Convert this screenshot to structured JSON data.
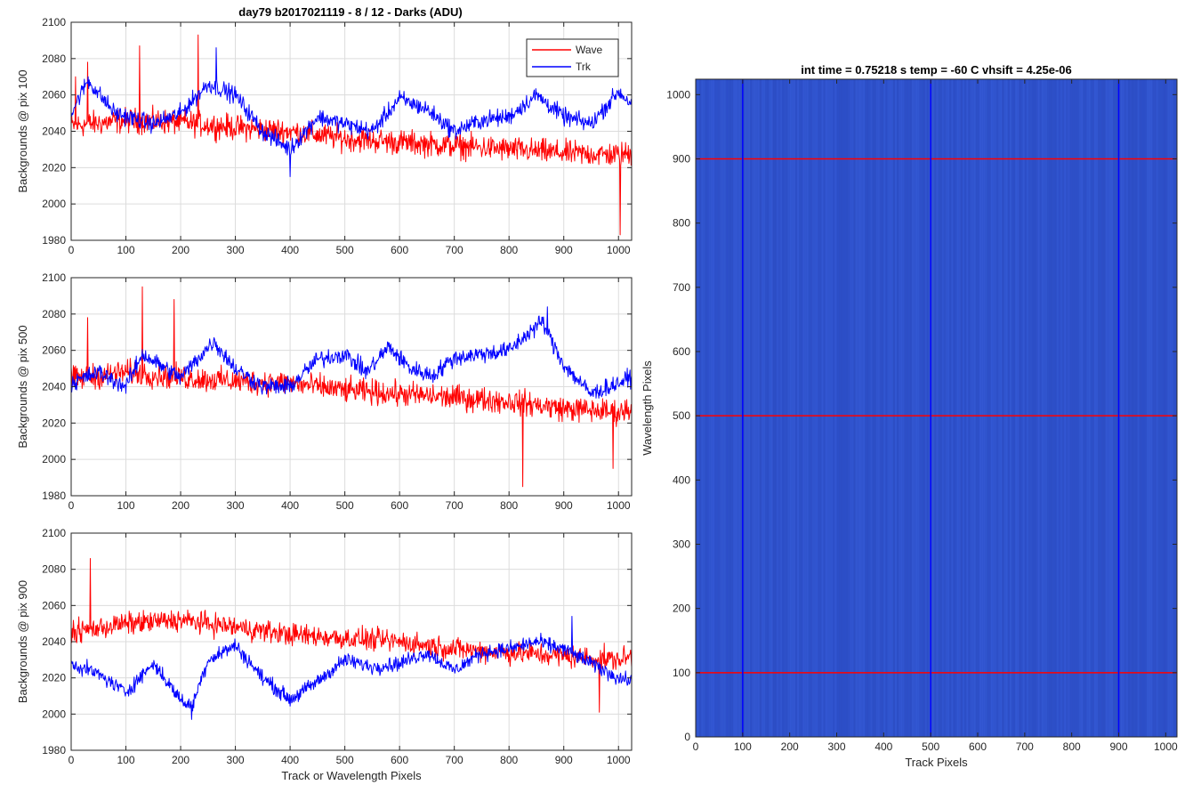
{
  "figure_title": "day79 b2017021119 - 8 / 12 - Darks (ADU)",
  "chart_data": [
    {
      "type": "line",
      "ylabel": "Backgrounds @ pix 100",
      "xlabel": "",
      "xlim": [
        0,
        1024
      ],
      "ylim": [
        1980,
        2100
      ],
      "xticks": [
        0,
        100,
        200,
        300,
        400,
        500,
        600,
        700,
        800,
        900,
        1000
      ],
      "yticks": [
        1980,
        2000,
        2020,
        2040,
        2060,
        2080,
        2100
      ],
      "grid": true,
      "legend": {
        "placement": "top-right",
        "entries": [
          "Wave",
          "Trk"
        ]
      },
      "series": [
        {
          "name": "Wave",
          "color": "#ff0000",
          "x": [
            0,
            100,
            200,
            300,
            400,
            500,
            600,
            700,
            800,
            900,
            1000,
            1024
          ],
          "values": [
            2043,
            2046,
            2045,
            2042,
            2040,
            2036,
            2034,
            2032,
            2030,
            2028,
            2027,
            2028
          ],
          "spread": 10,
          "spikes": [
            [
              8,
              2070
            ],
            [
              30,
              2078
            ],
            [
              125,
              2087
            ],
            [
              232,
              2093
            ],
            [
              1003,
              1983
            ]
          ]
        },
        {
          "name": "Trk",
          "color": "#0000ff",
          "x": [
            0,
            30,
            80,
            150,
            200,
            250,
            300,
            350,
            400,
            450,
            500,
            550,
            600,
            650,
            700,
            750,
            800,
            850,
            900,
            950,
            1000,
            1024
          ],
          "values": [
            2050,
            2068,
            2050,
            2044,
            2050,
            2066,
            2060,
            2040,
            2030,
            2048,
            2044,
            2040,
            2058,
            2052,
            2040,
            2046,
            2048,
            2060,
            2048,
            2044,
            2062,
            2055
          ],
          "spread": 7,
          "spikes": [
            [
              265,
              2086
            ],
            [
              400,
              2015
            ]
          ]
        }
      ]
    },
    {
      "type": "line",
      "ylabel": "Backgrounds @ pix 500",
      "xlabel": "",
      "xlim": [
        0,
        1024
      ],
      "ylim": [
        1980,
        2100
      ],
      "xticks": [
        0,
        100,
        200,
        300,
        400,
        500,
        600,
        700,
        800,
        900,
        1000
      ],
      "yticks": [
        1980,
        2000,
        2020,
        2040,
        2060,
        2080,
        2100
      ],
      "grid": true,
      "series": [
        {
          "name": "Wave",
          "color": "#ff0000",
          "x": [
            0,
            100,
            200,
            300,
            400,
            500,
            600,
            700,
            800,
            900,
            1000,
            1024
          ],
          "values": [
            2044,
            2048,
            2045,
            2043,
            2042,
            2038,
            2036,
            2034,
            2032,
            2028,
            2026,
            2028
          ],
          "spread": 10,
          "spikes": [
            [
              30,
              2078
            ],
            [
              130,
              2095
            ],
            [
              188,
              2088
            ],
            [
              825,
              1985
            ],
            [
              990,
              1995
            ]
          ]
        },
        {
          "name": "Trk",
          "color": "#0000ff",
          "x": [
            0,
            50,
            100,
            130,
            200,
            260,
            300,
            350,
            400,
            450,
            500,
            540,
            580,
            620,
            660,
            700,
            750,
            800,
            860,
            900,
            950,
            1000,
            1024
          ],
          "values": [
            2042,
            2048,
            2040,
            2058,
            2045,
            2065,
            2050,
            2040,
            2040,
            2055,
            2058,
            2048,
            2062,
            2050,
            2046,
            2056,
            2058,
            2060,
            2076,
            2052,
            2036,
            2042,
            2045
          ],
          "spread": 7,
          "spikes": [
            [
              870,
              2084
            ]
          ]
        }
      ]
    },
    {
      "type": "line",
      "ylabel": "Backgrounds @ pix 900",
      "xlabel": "Track or Wavelength Pixels",
      "xlim": [
        0,
        1024
      ],
      "ylim": [
        1980,
        2100
      ],
      "xticks": [
        0,
        100,
        200,
        300,
        400,
        500,
        600,
        700,
        800,
        900,
        1000
      ],
      "yticks": [
        1980,
        2000,
        2020,
        2040,
        2060,
        2080,
        2100
      ],
      "grid": true,
      "series": [
        {
          "name": "Wave",
          "color": "#ff0000",
          "x": [
            0,
            100,
            200,
            300,
            400,
            500,
            600,
            700,
            800,
            900,
            1000,
            1024
          ],
          "values": [
            2045,
            2050,
            2052,
            2048,
            2044,
            2042,
            2040,
            2036,
            2034,
            2032,
            2030,
            2032
          ],
          "spread": 9,
          "spikes": [
            [
              35,
              2086
            ],
            [
              965,
              2001
            ]
          ]
        },
        {
          "name": "Trk",
          "color": "#0000ff",
          "x": [
            0,
            50,
            100,
            150,
            200,
            220,
            250,
            300,
            350,
            400,
            450,
            500,
            550,
            600,
            650,
            700,
            750,
            800,
            850,
            900,
            950,
            1000,
            1024
          ],
          "values": [
            2028,
            2022,
            2012,
            2028,
            2008,
            2004,
            2030,
            2038,
            2020,
            2008,
            2018,
            2030,
            2026,
            2028,
            2034,
            2024,
            2034,
            2036,
            2040,
            2036,
            2028,
            2020,
            2018
          ],
          "spread": 6,
          "spikes": [
            [
              220,
              1997
            ],
            [
              915,
              2054
            ]
          ]
        }
      ]
    },
    {
      "type": "heatmap",
      "title": "int time = 0.75218 s   temp = -60 C   vhsift = 4.25e-06",
      "xlabel": "Track Pixels",
      "ylabel": "Wavelength Pixels",
      "xlim": [
        0,
        1024
      ],
      "ylim": [
        0,
        1024
      ],
      "xticks": [
        0,
        100,
        200,
        300,
        400,
        500,
        600,
        700,
        800,
        900,
        1000
      ],
      "yticks": [
        0,
        100,
        200,
        300,
        400,
        500,
        600,
        700,
        800,
        900,
        1000
      ],
      "grid": false,
      "base_color": "#2f52cc",
      "vertical_lines": {
        "color": "#0000ff",
        "x": [
          100,
          500,
          900
        ]
      },
      "horizontal_lines": {
        "color": "#ff0000",
        "y": [
          100,
          500,
          900
        ]
      }
    }
  ]
}
